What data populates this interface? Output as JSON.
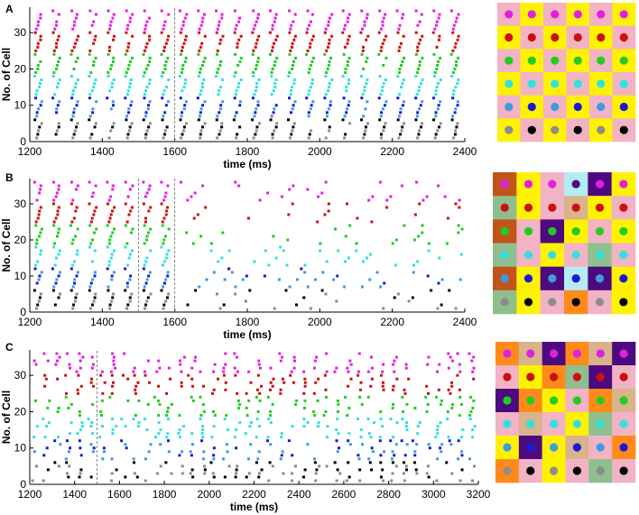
{
  "colors": {
    "gray": "#8c8c8c",
    "black": "#000000",
    "lightblue": "#3f9be0",
    "blue": "#1a1ad6",
    "cyan": "#33e0e0",
    "green": "#22cc22",
    "red": "#cc1010",
    "magenta": "#e020e0",
    "pink": "#f2b3c4",
    "yellow": "#fff200",
    "orange": "#ff8a1a",
    "brown": "#c0541a",
    "purple": "#4d0a80",
    "sage": "#8fbf8f",
    "tan": "#d9b38c",
    "lightcyan": "#b3ecf2"
  },
  "chart_data": [
    {
      "panel": "A",
      "type": "scatter",
      "xlabel": "time (ms)",
      "ylabel": "No. of Cell",
      "xlim": [
        1200,
        2400
      ],
      "ylim": [
        0,
        37
      ],
      "xticks": [
        1200,
        1400,
        1600,
        1800,
        2000,
        2200,
        2400
      ],
      "yticks": [
        0,
        10,
        20,
        30
      ],
      "markers": [
        1600
      ],
      "period": 50,
      "jitter": 0.08,
      "grid_cells": [
        [
          "pink",
          "yellow",
          "pink",
          "yellow",
          "pink",
          "yellow"
        ],
        [
          "yellow",
          "pink",
          "yellow",
          "pink",
          "yellow",
          "pink"
        ],
        [
          "pink",
          "yellow",
          "pink",
          "yellow",
          "pink",
          "yellow"
        ],
        [
          "yellow",
          "pink",
          "yellow",
          "pink",
          "yellow",
          "pink"
        ],
        [
          "pink",
          "yellow",
          "pink",
          "yellow",
          "pink",
          "yellow"
        ],
        [
          "yellow",
          "pink",
          "yellow",
          "pink",
          "yellow",
          "pink"
        ]
      ],
      "grid_dots": [
        [
          "magenta",
          "magenta",
          "magenta",
          "magenta",
          "magenta",
          "magenta"
        ],
        [
          "red",
          "red",
          "red",
          "red",
          "red",
          "red"
        ],
        [
          "green",
          "green",
          "green",
          "green",
          "green",
          "green"
        ],
        [
          "cyan",
          "cyan",
          "cyan",
          "cyan",
          "cyan",
          "cyan"
        ],
        [
          "lightblue",
          "blue",
          "lightblue",
          "blue",
          "lightblue",
          "blue"
        ],
        [
          "gray",
          "black",
          "gray",
          "black",
          "gray",
          "black"
        ]
      ]
    },
    {
      "panel": "B",
      "type": "scatter",
      "xlabel": "time (ms)",
      "ylabel": "No. of Cell",
      "xlim": [
        1200,
        2400
      ],
      "ylim": [
        0,
        37
      ],
      "xticks": [
        1200,
        1400,
        1600,
        1800,
        2000,
        2200,
        2400
      ],
      "yticks": [
        0,
        10,
        20,
        30
      ],
      "markers": [
        1500,
        1600
      ],
      "period": 50,
      "jitter": 0.08,
      "desync_after": 1600,
      "grid_cells": [
        [
          "brown",
          "yellow",
          "pink",
          "lightcyan",
          "purple",
          "yellow"
        ],
        [
          "sage",
          "yellow",
          "pink",
          "tan",
          "yellow",
          "pink"
        ],
        [
          "brown",
          "pink",
          "purple",
          "yellow",
          "pink",
          "yellow"
        ],
        [
          "sage",
          "pink",
          "yellow",
          "pink",
          "sage",
          "pink"
        ],
        [
          "brown",
          "yellow",
          "purple",
          "lightcyan",
          "purple",
          "yellow"
        ],
        [
          "sage",
          "yellow",
          "pink",
          "orange",
          "pink",
          "yellow"
        ]
      ],
      "grid_dots": [
        [
          "magenta",
          "magenta",
          "magenta",
          "purple",
          "magenta",
          "magenta"
        ],
        [
          "red",
          "red",
          "red",
          "red",
          "red",
          "red"
        ],
        [
          "green",
          "green",
          "green",
          "green",
          "green",
          "green"
        ],
        [
          "cyan",
          "cyan",
          "cyan",
          "cyan",
          "cyan",
          "cyan"
        ],
        [
          "lightblue",
          "blue",
          "lightblue",
          "blue",
          "lightblue",
          "blue"
        ],
        [
          "gray",
          "black",
          "gray",
          "black",
          "gray",
          "black"
        ]
      ]
    },
    {
      "panel": "C",
      "type": "scatter",
      "xlabel": "time (ms)",
      "ylabel": "No. of Cell",
      "xlim": [
        1200,
        3200
      ],
      "ylim": [
        0,
        37
      ],
      "xticks": [
        1200,
        1400,
        1600,
        1800,
        2000,
        2200,
        2400,
        2600,
        2800,
        3000,
        3200
      ],
      "yticks": [
        0,
        10,
        20,
        30
      ],
      "markers": [
        1500
      ],
      "period": 50,
      "jitter": 0.35,
      "grid_cells": [
        [
          "orange",
          "tan",
          "purple",
          "orange",
          "tan",
          "purple"
        ],
        [
          "pink",
          "yellow",
          "orange",
          "sage",
          "purple",
          "pink"
        ],
        [
          "purple",
          "orange",
          "yellow",
          "pink",
          "orange",
          "tan"
        ],
        [
          "pink",
          "tan",
          "pink",
          "yellow",
          "sage",
          "pink"
        ],
        [
          "yellow",
          "purple",
          "yellow",
          "tan",
          "pink",
          "orange"
        ],
        [
          "orange",
          "pink",
          "yellow",
          "pink",
          "sage",
          "pink"
        ]
      ],
      "grid_dots": [
        [
          "magenta",
          "magenta",
          "magenta",
          "magenta",
          "magenta",
          "magenta"
        ],
        [
          "red",
          "red",
          "red",
          "red",
          "red",
          "red"
        ],
        [
          "green",
          "green",
          "green",
          "green",
          "green",
          "green"
        ],
        [
          "cyan",
          "cyan",
          "cyan",
          "cyan",
          "cyan",
          "cyan"
        ],
        [
          "lightblue",
          "blue",
          "lightblue",
          "blue",
          "lightblue",
          "blue"
        ],
        [
          "gray",
          "black",
          "gray",
          "black",
          "gray",
          "black"
        ]
      ]
    }
  ]
}
